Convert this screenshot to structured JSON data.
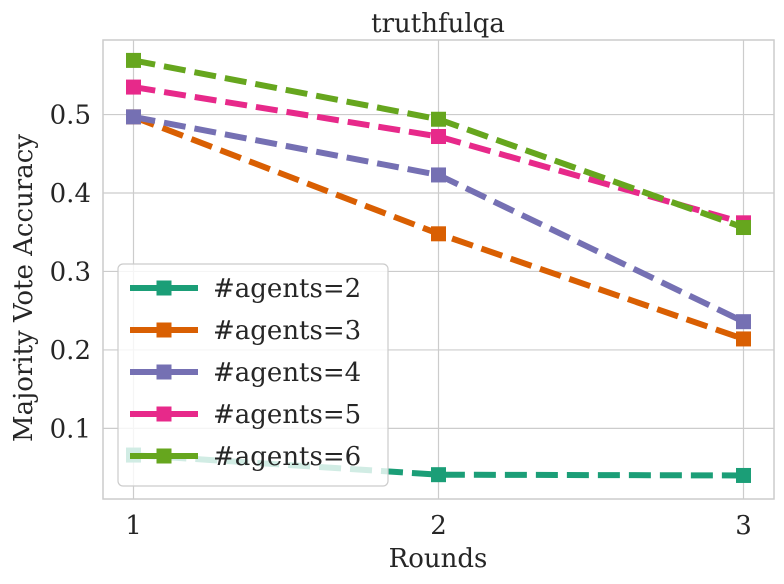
{
  "chart_data": {
    "type": "line",
    "title": "truthfulqa",
    "xlabel": "Rounds",
    "ylabel": "Majority Vote Accuracy",
    "x": [
      1,
      2,
      3
    ],
    "x_tick_labels": [
      "1",
      "2",
      "3"
    ],
    "y_ticks": [
      0.1,
      0.2,
      0.3,
      0.4,
      0.5
    ],
    "y_tick_labels": [
      "0.1",
      "0.2",
      "0.3",
      "0.4",
      "0.5"
    ],
    "xlim": [
      0.9,
      3.1
    ],
    "ylim": [
      0.01,
      0.595
    ],
    "grid": true,
    "legend_position": "lower-left",
    "line_style": "dashed",
    "marker": "square",
    "series": [
      {
        "name": "#agents=2",
        "color": "#1b9e77",
        "values": [
          0.066,
          0.041,
          0.04
        ]
      },
      {
        "name": "#agents=3",
        "color": "#d95f02",
        "values": [
          0.497,
          0.348,
          0.214
        ]
      },
      {
        "name": "#agents=4",
        "color": "#7570b3",
        "values": [
          0.497,
          0.423,
          0.236
        ]
      },
      {
        "name": "#agents=5",
        "color": "#e7298a",
        "values": [
          0.535,
          0.472,
          0.362
        ]
      },
      {
        "name": "#agents=6",
        "color": "#66a61e",
        "values": [
          0.569,
          0.494,
          0.356
        ]
      }
    ]
  }
}
